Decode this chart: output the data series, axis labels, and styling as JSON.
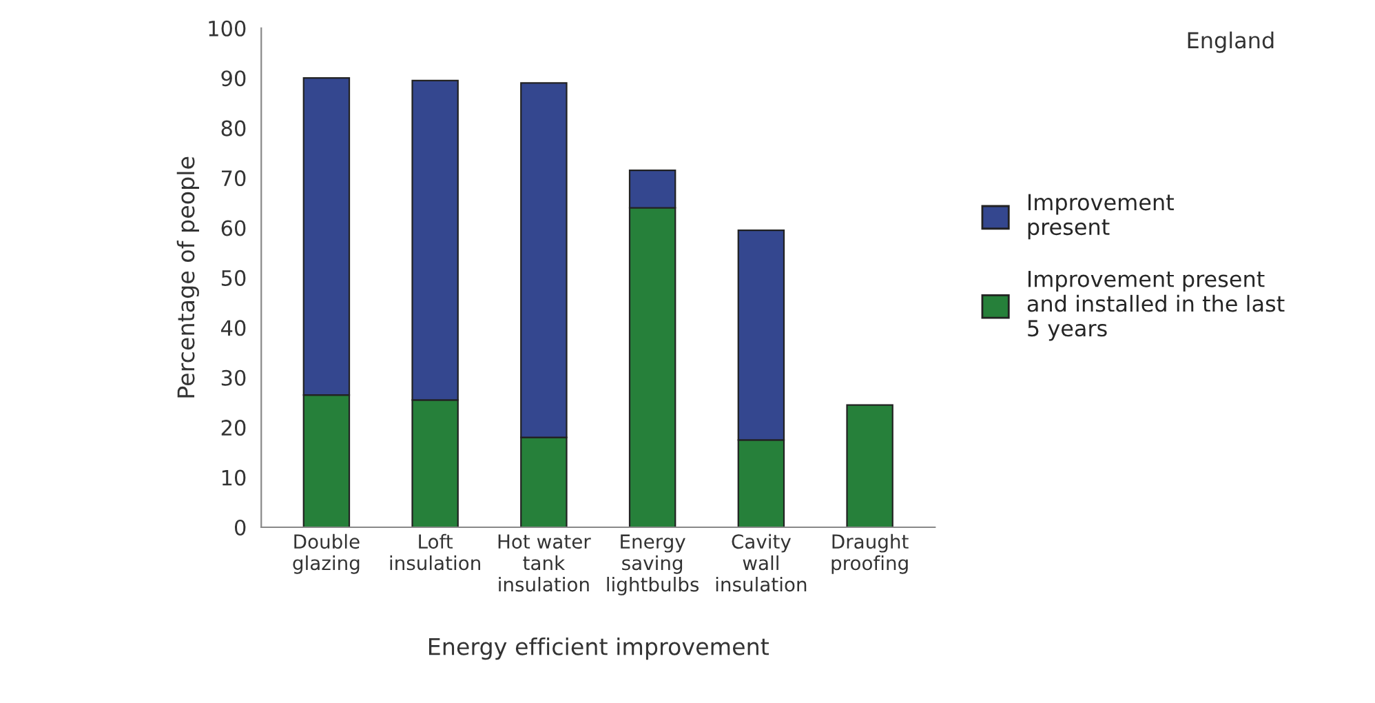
{
  "chart_data": {
    "type": "bar",
    "stacked": true,
    "categories": [
      "Double\nglazing",
      "Loft\ninsulation",
      "Hot water\ntank\ninsulation",
      "Energy\nsaving\nlightbulbs",
      "Cavity\nwall\ninsulation",
      "Draught\nproofing"
    ],
    "series": [
      {
        "name": "Improvement present\nand installed in the last\n5 years",
        "color": "#26803a",
        "values": [
          26.5,
          25.5,
          18,
          64,
          17.5,
          24.5
        ]
      },
      {
        "name": "Improvement\npresent",
        "color": "#34478f",
        "values": [
          63.5,
          64,
          71,
          7.5,
          42,
          null
        ]
      }
    ],
    "xlabel": "Energy efficient improvement",
    "ylabel": "Percentage of people",
    "ylim": [
      0,
      100
    ],
    "yticks": [
      0,
      10,
      20,
      30,
      40,
      50,
      60,
      70,
      80,
      90,
      100
    ],
    "grid": false,
    "legend": "right",
    "annotations": [
      "England"
    ]
  }
}
